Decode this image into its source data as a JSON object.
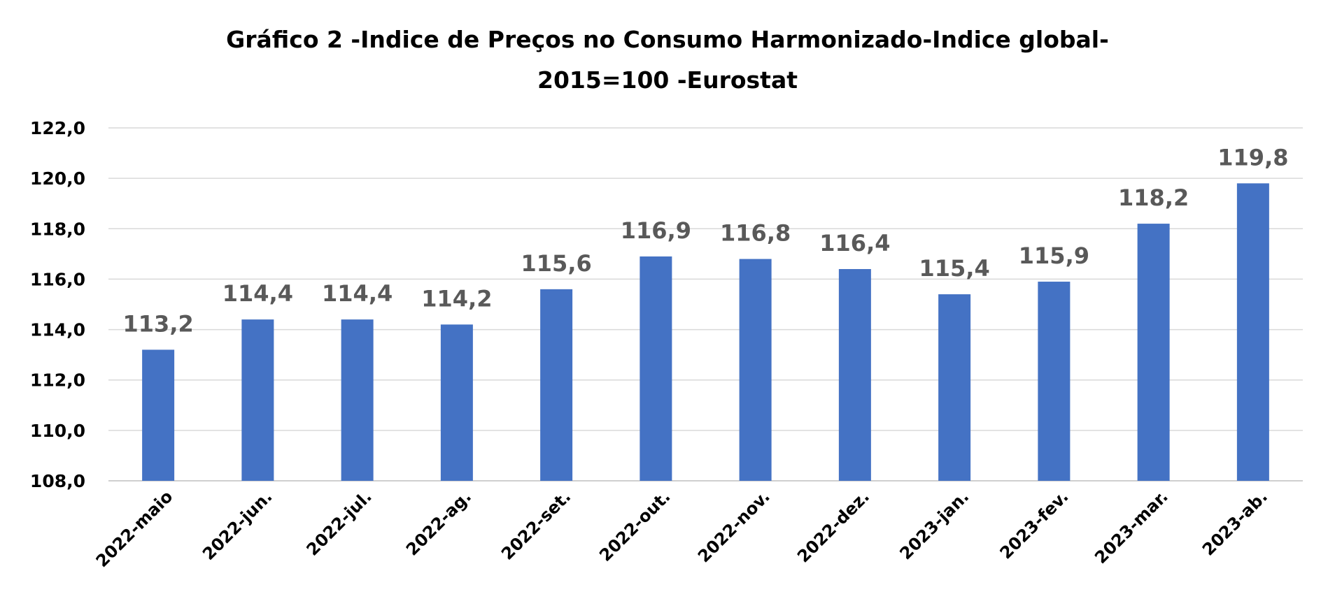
{
  "chart_data": {
    "type": "bar",
    "title": "Gráfico 2 -Indice de Preços no Consumo Harmonizado-Indice global-2015=100 -Eurostat",
    "title_lines": [
      "Gráfico 2 -Indice de Preços no Consumo Harmonizado-Indice global-",
      "2015=100 -Eurostat"
    ],
    "categories": [
      "2022-maio",
      "2022-jun.",
      "2022-jul.",
      "2022-ag.",
      "2022-set.",
      "2022-out.",
      "2022-nov.",
      "2022-dez.",
      "2023-jan.",
      "2023-fev.",
      "2023-mar.",
      "2023-ab."
    ],
    "values": [
      113.2,
      114.4,
      114.4,
      114.2,
      115.6,
      116.9,
      116.8,
      116.4,
      115.4,
      115.9,
      118.2,
      119.8
    ],
    "data_labels": [
      "113,2",
      "114,4",
      "114,4",
      "114,2",
      "115,6",
      "116,9",
      "116,8",
      "116,4",
      "115,4",
      "115,9",
      "118,2",
      "119,8"
    ],
    "xlabel": "",
    "ylabel": "",
    "ylim": [
      108,
      122
    ],
    "y_ticks": [
      108,
      110,
      112,
      114,
      116,
      118,
      120,
      122
    ],
    "y_tick_labels": [
      "108,0",
      "110,0",
      "112,0",
      "114,0",
      "116,0",
      "118,0",
      "120,0",
      "122,0"
    ],
    "grid": true,
    "legend": "none",
    "bar_color": "#4472c4"
  }
}
